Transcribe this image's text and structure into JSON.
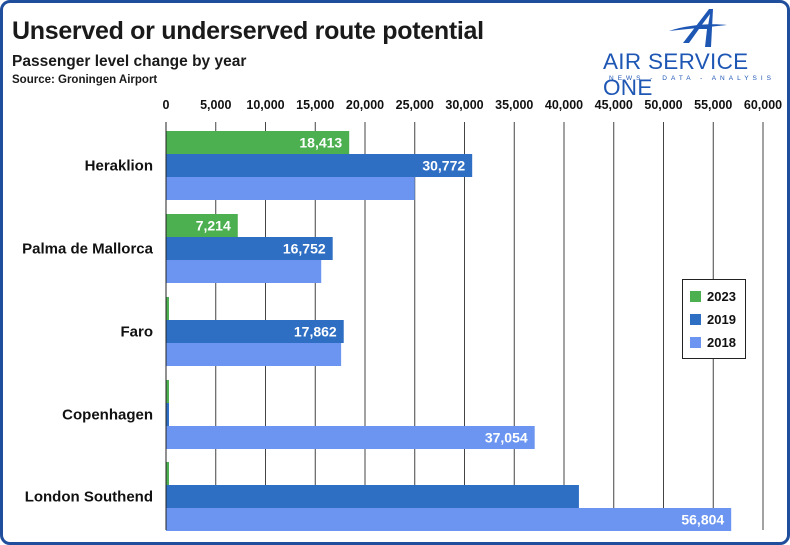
{
  "header": {
    "title": "Unserved or underserved route potential",
    "subtitle": "Passenger level change by year",
    "source": "Source: Groningen Airport"
  },
  "logo": {
    "brand": "AIR SERVICE ONE",
    "tagline": "NEWS - DATA - ANALYSIS",
    "icon": "stylized-a-airplane-icon",
    "color": "#1e56b4"
  },
  "chart_data": {
    "type": "bar",
    "orientation": "horizontal",
    "title": "Unserved or underserved route potential",
    "subtitle": "Passenger level change by year",
    "categories": [
      "Heraklion",
      "Palma de Mallorca",
      "Faro",
      "Copenhagen",
      "London Southend"
    ],
    "series": [
      {
        "name": "2023",
        "color": "#4caf50",
        "values": [
          18413,
          7214,
          300,
          300,
          300
        ],
        "labels": [
          "18,413",
          "7,214",
          "",
          "",
          ""
        ]
      },
      {
        "name": "2019",
        "color": "#2e6fc4",
        "values": [
          30772,
          16752,
          17862,
          300,
          41500
        ],
        "labels": [
          "30,772",
          "16,752",
          "17,862",
          "",
          ""
        ]
      },
      {
        "name": "2018",
        "color": "#6b95f0",
        "values": [
          25000,
          15600,
          17600,
          37054,
          56804
        ],
        "labels": [
          "",
          "",
          "",
          "37,054",
          "56,804"
        ]
      }
    ],
    "xlim": [
      0,
      60000
    ],
    "xticks": [
      "0",
      "5,000",
      "10,000",
      "15,000",
      "20,000",
      "25,000",
      "30,000",
      "35,000",
      "40,000",
      "45,000",
      "50,000",
      "55,000",
      "60,000"
    ],
    "xlabel": "",
    "ylabel": "",
    "grid": "vertical",
    "axis_position": "top",
    "legend": {
      "position": "right",
      "entries": [
        "2023",
        "2019",
        "2018"
      ]
    }
  }
}
